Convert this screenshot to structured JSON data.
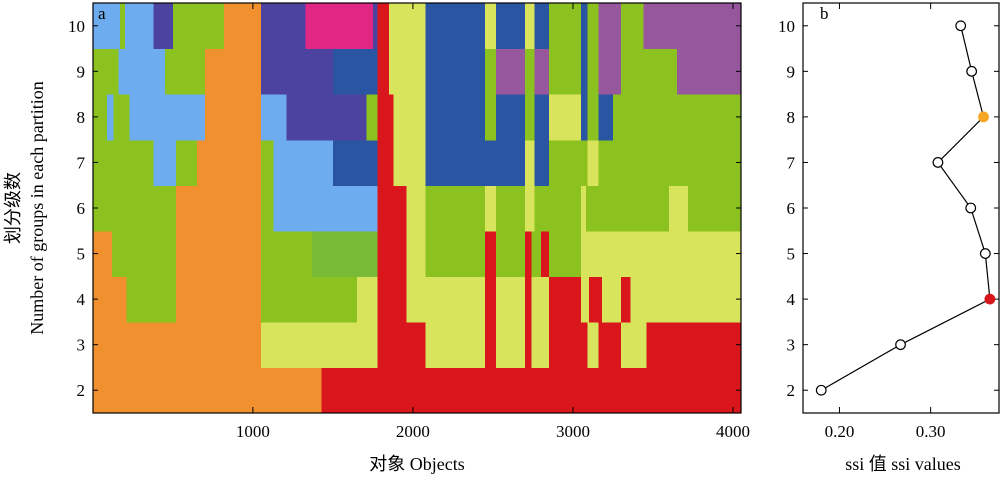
{
  "chart_data": [
    {
      "panel": "a",
      "type": "heatmap",
      "xlabel": "对象 Objects",
      "ylabel_cn": "划分级数",
      "ylabel_en": "Number of groups in each partition",
      "xlim": [
        1,
        4050
      ],
      "ylim": [
        1.5,
        10.5
      ],
      "x_ticks": [
        1000,
        2000,
        3000,
        4000
      ],
      "y_ticks": [
        2,
        3,
        4,
        5,
        6,
        7,
        8,
        9,
        10
      ],
      "colors": {
        "orange": "#f0902f",
        "red": "#d9161c",
        "green": "#8cc21f",
        "light_green": "#77bb36",
        "yellow": "#d9e45d",
        "light_blue": "#6dacee",
        "blue": "#2a55a2",
        "indigo": "#4c42a0",
        "magenta": "#e02783",
        "purple": "#96579c"
      },
      "rows": [
        {
          "k": 2,
          "segments": [
            [
              1,
              1430,
              "orange"
            ],
            [
              1430,
              4050,
              "red"
            ]
          ]
        },
        {
          "k": 3,
          "segments": [
            [
              1,
              1050,
              "orange"
            ],
            [
              1050,
              1780,
              "yellow"
            ],
            [
              1780,
              2080,
              "red"
            ],
            [
              2080,
              2450,
              "yellow"
            ],
            [
              2450,
              2520,
              "red"
            ],
            [
              2520,
              2700,
              "yellow"
            ],
            [
              2700,
              2740,
              "red"
            ],
            [
              2740,
              2850,
              "yellow"
            ],
            [
              2850,
              3090,
              "red"
            ],
            [
              3090,
              3160,
              "yellow"
            ],
            [
              3160,
              3300,
              "red"
            ],
            [
              3300,
              3460,
              "yellow"
            ],
            [
              3460,
              4050,
              "red"
            ]
          ]
        },
        {
          "k": 4,
          "segments": [
            [
              1,
              210,
              "orange"
            ],
            [
              210,
              520,
              "green"
            ],
            [
              520,
              1050,
              "orange"
            ],
            [
              1050,
              1650,
              "green"
            ],
            [
              1650,
              1780,
              "yellow"
            ],
            [
              1780,
              1960,
              "red"
            ],
            [
              1960,
              2080,
              "yellow"
            ],
            [
              2080,
              2450,
              "yellow"
            ],
            [
              2450,
              2520,
              "red"
            ],
            [
              2520,
              2700,
              "yellow"
            ],
            [
              2700,
              2740,
              "red"
            ],
            [
              2740,
              2850,
              "yellow"
            ],
            [
              2850,
              3050,
              "red"
            ],
            [
              3050,
              3100,
              "yellow"
            ],
            [
              3100,
              3180,
              "red"
            ],
            [
              3180,
              3300,
              "yellow"
            ],
            [
              3300,
              3360,
              "red"
            ],
            [
              3360,
              4050,
              "yellow"
            ]
          ]
        },
        {
          "k": 5,
          "segments": [
            [
              1,
              120,
              "orange"
            ],
            [
              120,
              520,
              "green"
            ],
            [
              520,
              1050,
              "orange"
            ],
            [
              1050,
              1370,
              "green"
            ],
            [
              1370,
              1780,
              "light_green"
            ],
            [
              1780,
              1960,
              "red"
            ],
            [
              1960,
              2080,
              "yellow"
            ],
            [
              2080,
              2450,
              "green"
            ],
            [
              2450,
              2520,
              "red"
            ],
            [
              2520,
              2700,
              "green"
            ],
            [
              2700,
              2740,
              "red"
            ],
            [
              2740,
              2800,
              "green"
            ],
            [
              2800,
              2850,
              "red"
            ],
            [
              2850,
              3050,
              "green"
            ],
            [
              3050,
              4050,
              "yellow"
            ]
          ]
        },
        {
          "k": 6,
          "segments": [
            [
              1,
              520,
              "green"
            ],
            [
              520,
              1050,
              "orange"
            ],
            [
              1050,
              1130,
              "green"
            ],
            [
              1130,
              1780,
              "light_blue"
            ],
            [
              1780,
              1960,
              "red"
            ],
            [
              1960,
              2080,
              "yellow"
            ],
            [
              2080,
              2450,
              "green"
            ],
            [
              2450,
              2520,
              "yellow"
            ],
            [
              2520,
              2700,
              "green"
            ],
            [
              2700,
              2760,
              "yellow"
            ],
            [
              2760,
              3050,
              "green"
            ],
            [
              3050,
              3080,
              "yellow"
            ],
            [
              3080,
              3600,
              "green"
            ],
            [
              3600,
              3720,
              "yellow"
            ],
            [
              3720,
              4050,
              "green"
            ]
          ]
        },
        {
          "k": 7,
          "segments": [
            [
              1,
              380,
              "green"
            ],
            [
              380,
              520,
              "light_blue"
            ],
            [
              520,
              650,
              "green"
            ],
            [
              650,
              1050,
              "orange"
            ],
            [
              1050,
              1130,
              "green"
            ],
            [
              1130,
              1500,
              "light_blue"
            ],
            [
              1500,
              1780,
              "blue"
            ],
            [
              1780,
              1880,
              "red"
            ],
            [
              1880,
              2080,
              "yellow"
            ],
            [
              2080,
              2700,
              "blue"
            ],
            [
              2700,
              2760,
              "yellow"
            ],
            [
              2760,
              2850,
              "blue"
            ],
            [
              2850,
              3090,
              "green"
            ],
            [
              3090,
              3160,
              "yellow"
            ],
            [
              3160,
              3230,
              "green"
            ],
            [
              3230,
              4050,
              "green"
            ]
          ]
        },
        {
          "k": 8,
          "segments": [
            [
              1,
              90,
              "green"
            ],
            [
              90,
              130,
              "light_blue"
            ],
            [
              130,
              230,
              "green"
            ],
            [
              230,
              700,
              "light_blue"
            ],
            [
              700,
              790,
              "orange"
            ],
            [
              790,
              1050,
              "orange"
            ],
            [
              1050,
              1210,
              "light_blue"
            ],
            [
              1210,
              1710,
              "indigo"
            ],
            [
              1710,
              1780,
              "green"
            ],
            [
              1780,
              1880,
              "red"
            ],
            [
              1880,
              2080,
              "yellow"
            ],
            [
              2080,
              2450,
              "blue"
            ],
            [
              2450,
              2520,
              "green"
            ],
            [
              2520,
              2700,
              "blue"
            ],
            [
              2700,
              2760,
              "green"
            ],
            [
              2760,
              2850,
              "blue"
            ],
            [
              2850,
              3050,
              "yellow"
            ],
            [
              3050,
              3090,
              "blue"
            ],
            [
              3090,
              3160,
              "green"
            ],
            [
              3160,
              3250,
              "blue"
            ],
            [
              3250,
              4050,
              "green"
            ]
          ]
        },
        {
          "k": 9,
          "segments": [
            [
              1,
              160,
              "green"
            ],
            [
              160,
              450,
              "light_blue"
            ],
            [
              450,
              700,
              "green"
            ],
            [
              700,
              850,
              "orange"
            ],
            [
              850,
              1050,
              "orange"
            ],
            [
              1050,
              1500,
              "indigo"
            ],
            [
              1500,
              1780,
              "blue"
            ],
            [
              1780,
              1850,
              "red"
            ],
            [
              1850,
              2080,
              "yellow"
            ],
            [
              2080,
              2450,
              "blue"
            ],
            [
              2450,
              2520,
              "green"
            ],
            [
              2520,
              2700,
              "purple"
            ],
            [
              2700,
              2760,
              "green"
            ],
            [
              2760,
              2850,
              "purple"
            ],
            [
              2850,
              3050,
              "green"
            ],
            [
              3050,
              3090,
              "blue"
            ],
            [
              3090,
              3160,
              "green"
            ],
            [
              3160,
              3300,
              "purple"
            ],
            [
              3300,
              3650,
              "green"
            ],
            [
              3650,
              4050,
              "purple"
            ]
          ]
        },
        {
          "k": 10,
          "segments": [
            [
              1,
              170,
              "light_blue"
            ],
            [
              170,
              200,
              "green"
            ],
            [
              200,
              380,
              "light_blue"
            ],
            [
              380,
              500,
              "indigo"
            ],
            [
              500,
              820,
              "green"
            ],
            [
              820,
              1050,
              "orange"
            ],
            [
              1050,
              1330,
              "indigo"
            ],
            [
              1330,
              1750,
              "magenta"
            ],
            [
              1750,
              1780,
              "indigo"
            ],
            [
              1780,
              1850,
              "red"
            ],
            [
              1850,
              2080,
              "yellow"
            ],
            [
              2080,
              2450,
              "blue"
            ],
            [
              2450,
              2520,
              "yellow"
            ],
            [
              2520,
              2700,
              "blue"
            ],
            [
              2700,
              2760,
              "yellow"
            ],
            [
              2760,
              2850,
              "blue"
            ],
            [
              2850,
              3050,
              "green"
            ],
            [
              3050,
              3090,
              "blue"
            ],
            [
              3090,
              3160,
              "green"
            ],
            [
              3160,
              3300,
              "purple"
            ],
            [
              3300,
              3440,
              "green"
            ],
            [
              3440,
              4050,
              "purple"
            ]
          ]
        }
      ]
    },
    {
      "panel": "b",
      "type": "line",
      "xlabel": "ssi 值 ssi values",
      "xlim": [
        0.16,
        0.375
      ],
      "ylim": [
        1.5,
        10.5
      ],
      "x_ticks": [
        0.2,
        0.3
      ],
      "x_tick_labels": [
        "0.20",
        "0.30"
      ],
      "y_ticks": [
        2,
        3,
        4,
        5,
        6,
        7,
        8,
        9,
        10
      ],
      "series": [
        {
          "x": [
            0.18,
            0.267,
            0.365,
            0.36,
            0.344,
            0.308,
            0.358,
            0.345,
            0.333
          ],
          "y": [
            2,
            3,
            4,
            5,
            6,
            7,
            8,
            9,
            10
          ]
        }
      ],
      "highlight": [
        {
          "k": 4,
          "color": "#d9161c"
        },
        {
          "k": 8,
          "color": "#f5a623"
        }
      ]
    }
  ]
}
